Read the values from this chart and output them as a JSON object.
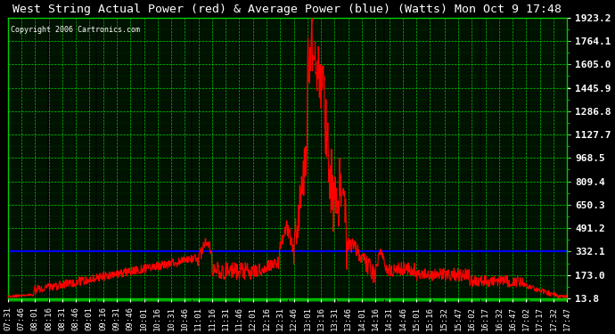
{
  "title": "West String Actual Power (red) & Average Power (blue) (Watts) Mon Oct 9 17:48",
  "copyright": "Copyright 2006 Cartronics.com",
  "background_color": "#000000",
  "plot_bg_color": "#000000",
  "grid_color": "#00cc00",
  "title_color": "#ffffff",
  "copyright_color": "#ffffff",
  "y_tick_color": "#ffffff",
  "y_ticks": [
    13.8,
    173.0,
    332.1,
    491.2,
    650.3,
    809.4,
    968.5,
    1127.7,
    1286.8,
    1445.9,
    1605.0,
    1764.1,
    1923.2
  ],
  "ymin": 13.8,
  "ymax": 1923.2,
  "avg_power": 332.1,
  "x_labels": [
    "07:31",
    "07:46",
    "08:01",
    "08:16",
    "08:31",
    "08:46",
    "09:01",
    "09:16",
    "09:31",
    "09:46",
    "10:01",
    "10:16",
    "10:31",
    "10:46",
    "11:01",
    "11:16",
    "11:31",
    "11:46",
    "12:01",
    "12:16",
    "12:31",
    "12:46",
    "13:01",
    "13:16",
    "13:31",
    "13:46",
    "14:01",
    "14:16",
    "14:31",
    "14:46",
    "15:01",
    "15:16",
    "15:32",
    "15:47",
    "16:02",
    "16:17",
    "16:32",
    "16:47",
    "17:02",
    "17:17",
    "17:32",
    "17:47"
  ]
}
